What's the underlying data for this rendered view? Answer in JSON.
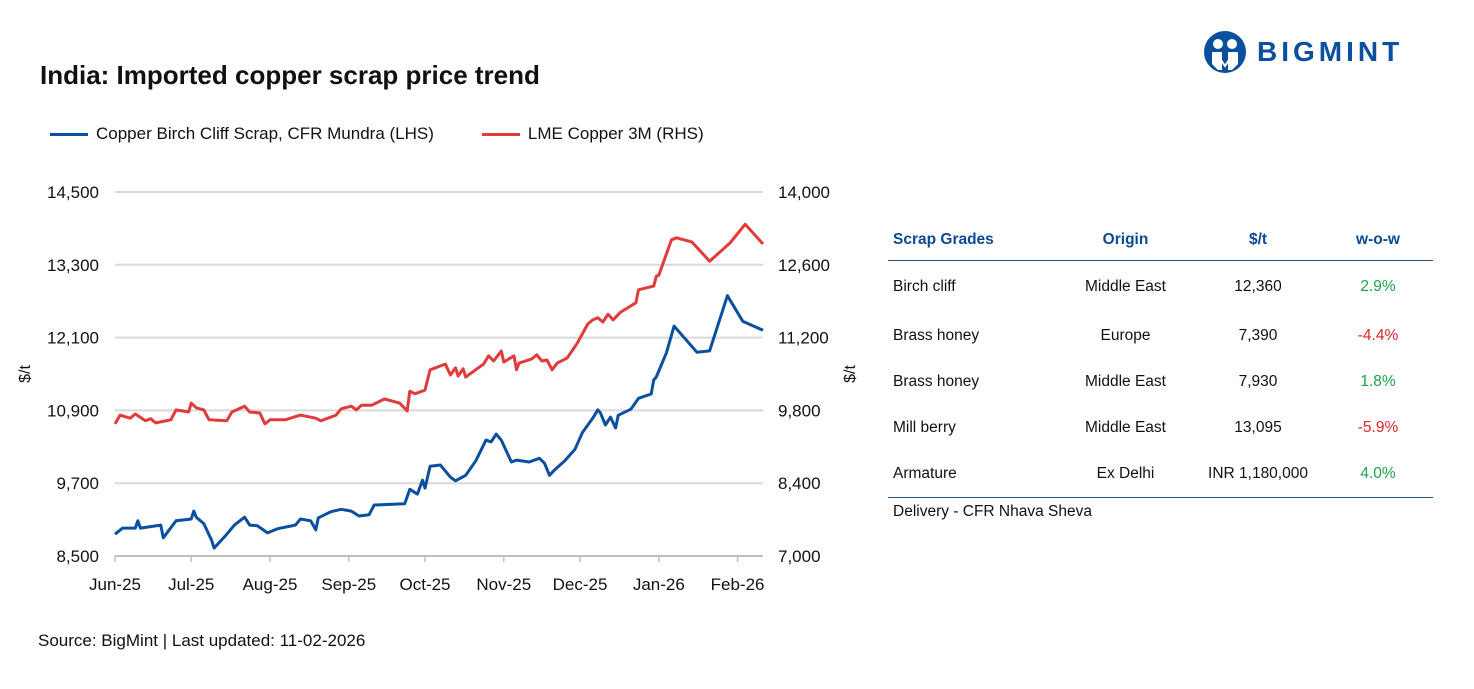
{
  "title": "India: Imported copper scrap price trend",
  "logo": {
    "text": "BIGMINT",
    "icon": "people-logo-icon",
    "color": "#0b4fa0"
  },
  "source": "Source: BigMint | Last updated: 11-02-2026",
  "table": {
    "headers": [
      "Scrap Grades",
      "Origin",
      "$/t",
      "w-o-w"
    ],
    "rows": [
      {
        "grade": "Birch cliff",
        "origin": "Middle East",
        "price": "12,360",
        "wow": "2.9%",
        "dir": "pos"
      },
      {
        "grade": "Brass honey",
        "origin": "Europe",
        "price": "7,390",
        "wow": "-4.4%",
        "dir": "neg"
      },
      {
        "grade": "Brass honey",
        "origin": "Middle East",
        "price": "7,930",
        "wow": "1.8%",
        "dir": "pos"
      },
      {
        "grade": "Mill berry",
        "origin": "Middle East",
        "price": "13,095",
        "wow": "-5.9%",
        "dir": "neg"
      },
      {
        "grade": "Armature",
        "origin": "Ex Delhi",
        "price": "INR 1,180,000",
        "wow": "4.0%",
        "dir": "pos"
      }
    ],
    "note": "Delivery - CFR Nhava Sheva",
    "colors": {
      "header": "#0b4a92",
      "positive": "#1ea24c",
      "negative": "#e0232b"
    }
  },
  "chart_data": {
    "type": "line",
    "xlabel": "",
    "ylabel_left": "$/t",
    "ylabel_right": "$/t",
    "x_ticks": [
      "Jun-25",
      "Jul-25",
      "Aug-25",
      "Sep-25",
      "Oct-25",
      "Nov-25",
      "Dec-25",
      "Jan-26",
      "Feb-26"
    ],
    "x_range": [
      "2025-06-01",
      "2026-02-11"
    ],
    "y_left": {
      "range": [
        8500,
        14500
      ],
      "ticks": [
        "8,500",
        "9,700",
        "10,900",
        "12,100",
        "13,300",
        "14,500"
      ]
    },
    "y_right": {
      "range": [
        7000,
        14000
      ],
      "ticks": [
        "7,000",
        "8,400",
        "9,800",
        "11,200",
        "12,600",
        "14,000"
      ]
    },
    "grid": true,
    "legend_position": "top",
    "series": [
      {
        "name": "Copper Birch Cliff Scrap, CFR Mundra (LHS)",
        "axis": "left",
        "color": "#0b4fa0",
        "points": [
          [
            "2025-06-01",
            8860
          ],
          [
            "2025-06-04",
            8960
          ],
          [
            "2025-06-09",
            8960
          ],
          [
            "2025-06-10",
            9080
          ],
          [
            "2025-06-11",
            8960
          ],
          [
            "2025-06-19",
            9010
          ],
          [
            "2025-06-20",
            8800
          ],
          [
            "2025-06-25",
            9080
          ],
          [
            "2025-07-01",
            9110
          ],
          [
            "2025-07-02",
            9240
          ],
          [
            "2025-07-03",
            9140
          ],
          [
            "2025-07-06",
            9030
          ],
          [
            "2025-07-09",
            8760
          ],
          [
            "2025-07-10",
            8630
          ],
          [
            "2025-07-15",
            8860
          ],
          [
            "2025-07-18",
            9010
          ],
          [
            "2025-07-22",
            9140
          ],
          [
            "2025-07-24",
            9010
          ],
          [
            "2025-07-27",
            9000
          ],
          [
            "2025-07-31",
            8880
          ],
          [
            "2025-08-04",
            8950
          ],
          [
            "2025-08-11",
            9010
          ],
          [
            "2025-08-13",
            9110
          ],
          [
            "2025-08-17",
            9080
          ],
          [
            "2025-08-19",
            8930
          ],
          [
            "2025-08-20",
            9130
          ],
          [
            "2025-08-25",
            9230
          ],
          [
            "2025-08-29",
            9270
          ],
          [
            "2025-09-02",
            9240
          ],
          [
            "2025-09-05",
            9160
          ],
          [
            "2025-09-09",
            9180
          ],
          [
            "2025-09-11",
            9340
          ],
          [
            "2025-09-23",
            9360
          ],
          [
            "2025-09-25",
            9600
          ],
          [
            "2025-09-28",
            9520
          ],
          [
            "2025-09-30",
            9750
          ],
          [
            "2025-10-01",
            9620
          ],
          [
            "2025-10-03",
            9980
          ],
          [
            "2025-10-07",
            10000
          ],
          [
            "2025-10-11",
            9800
          ],
          [
            "2025-10-13",
            9740
          ],
          [
            "2025-10-17",
            9830
          ],
          [
            "2025-10-21",
            10070
          ],
          [
            "2025-10-25",
            10410
          ],
          [
            "2025-10-27",
            10380
          ],
          [
            "2025-10-29",
            10510
          ],
          [
            "2025-10-31",
            10410
          ],
          [
            "2025-11-04",
            10050
          ],
          [
            "2025-11-06",
            10080
          ],
          [
            "2025-11-11",
            10050
          ],
          [
            "2025-11-15",
            10110
          ],
          [
            "2025-11-17",
            10030
          ],
          [
            "2025-11-19",
            9830
          ],
          [
            "2025-11-21",
            9920
          ],
          [
            "2025-11-25",
            10070
          ],
          [
            "2025-11-29",
            10260
          ],
          [
            "2025-12-02",
            10540
          ],
          [
            "2025-12-06",
            10770
          ],
          [
            "2025-12-08",
            10910
          ],
          [
            "2025-12-09",
            10860
          ],
          [
            "2025-12-11",
            10660
          ],
          [
            "2025-12-13",
            10790
          ],
          [
            "2025-12-15",
            10610
          ],
          [
            "2025-12-16",
            10820
          ],
          [
            "2025-12-21",
            10920
          ],
          [
            "2025-12-24",
            11100
          ],
          [
            "2025-12-29",
            11170
          ],
          [
            "2025-12-30",
            11400
          ],
          [
            "2025-12-31",
            11450
          ],
          [
            "2026-01-04",
            11850
          ],
          [
            "2026-01-07",
            12290
          ],
          [
            "2026-01-16",
            11860
          ],
          [
            "2026-01-21",
            11880
          ],
          [
            "2026-01-28",
            12790
          ],
          [
            "2026-02-03",
            12370
          ],
          [
            "2026-02-11",
            12220
          ]
        ]
      },
      {
        "name": "LME Copper 3M (RHS)",
        "axis": "right",
        "color": "#e23b3b",
        "points": [
          [
            "2025-06-01",
            9540
          ],
          [
            "2025-06-03",
            9710
          ],
          [
            "2025-06-07",
            9650
          ],
          [
            "2025-06-09",
            9730
          ],
          [
            "2025-06-13",
            9600
          ],
          [
            "2025-06-15",
            9640
          ],
          [
            "2025-06-17",
            9560
          ],
          [
            "2025-06-23",
            9620
          ],
          [
            "2025-06-25",
            9810
          ],
          [
            "2025-06-30",
            9770
          ],
          [
            "2025-07-01",
            9940
          ],
          [
            "2025-07-03",
            9850
          ],
          [
            "2025-07-06",
            9810
          ],
          [
            "2025-07-08",
            9620
          ],
          [
            "2025-07-15",
            9600
          ],
          [
            "2025-07-17",
            9770
          ],
          [
            "2025-07-22",
            9880
          ],
          [
            "2025-07-24",
            9770
          ],
          [
            "2025-07-28",
            9750
          ],
          [
            "2025-07-30",
            9540
          ],
          [
            "2025-08-01",
            9620
          ],
          [
            "2025-08-07",
            9620
          ],
          [
            "2025-08-13",
            9710
          ],
          [
            "2025-08-19",
            9650
          ],
          [
            "2025-08-21",
            9600
          ],
          [
            "2025-08-27",
            9710
          ],
          [
            "2025-08-29",
            9830
          ],
          [
            "2025-09-02",
            9880
          ],
          [
            "2025-09-04",
            9810
          ],
          [
            "2025-09-06",
            9900
          ],
          [
            "2025-09-10",
            9900
          ],
          [
            "2025-09-15",
            10020
          ],
          [
            "2025-09-21",
            9940
          ],
          [
            "2025-09-24",
            9790
          ],
          [
            "2025-09-25",
            10170
          ],
          [
            "2025-09-27",
            10120
          ],
          [
            "2025-10-01",
            10190
          ],
          [
            "2025-10-03",
            10580
          ],
          [
            "2025-10-09",
            10690
          ],
          [
            "2025-10-11",
            10480
          ],
          [
            "2025-10-13",
            10620
          ],
          [
            "2025-10-14",
            10460
          ],
          [
            "2025-10-16",
            10600
          ],
          [
            "2025-10-17",
            10440
          ],
          [
            "2025-10-24",
            10690
          ],
          [
            "2025-10-26",
            10850
          ],
          [
            "2025-10-28",
            10750
          ],
          [
            "2025-10-31",
            10940
          ],
          [
            "2025-11-01",
            10730
          ],
          [
            "2025-11-05",
            10850
          ],
          [
            "2025-11-06",
            10580
          ],
          [
            "2025-11-07",
            10710
          ],
          [
            "2025-11-12",
            10790
          ],
          [
            "2025-11-14",
            10870
          ],
          [
            "2025-11-16",
            10750
          ],
          [
            "2025-11-18",
            10770
          ],
          [
            "2025-11-20",
            10580
          ],
          [
            "2025-11-22",
            10710
          ],
          [
            "2025-11-26",
            10810
          ],
          [
            "2025-11-30",
            11100
          ],
          [
            "2025-12-04",
            11460
          ],
          [
            "2025-12-06",
            11540
          ],
          [
            "2025-12-08",
            11580
          ],
          [
            "2025-12-10",
            11500
          ],
          [
            "2025-12-12",
            11650
          ],
          [
            "2025-12-14",
            11540
          ],
          [
            "2025-12-17",
            11690
          ],
          [
            "2025-12-23",
            11870
          ],
          [
            "2025-12-24",
            12120
          ],
          [
            "2025-12-30",
            12190
          ],
          [
            "2025-12-31",
            12380
          ],
          [
            "2026-01-01",
            12400
          ],
          [
            "2026-01-06",
            13080
          ],
          [
            "2026-01-08",
            13120
          ],
          [
            "2026-01-14",
            13040
          ],
          [
            "2026-01-21",
            12670
          ],
          [
            "2026-01-29",
            13020
          ],
          [
            "2026-02-04",
            13380
          ],
          [
            "2026-02-11",
            13000
          ]
        ]
      }
    ]
  }
}
